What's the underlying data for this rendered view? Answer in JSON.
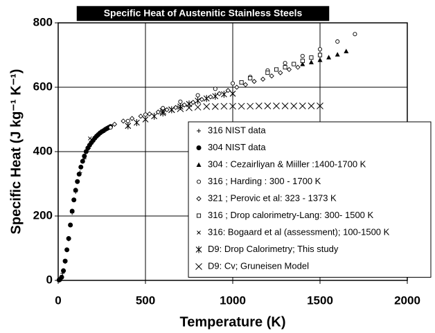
{
  "chart_data": {
    "type": "scatter",
    "title": "Specific Heat of Austenitic Stainless Steels",
    "xlabel": "Temperature (K)",
    "ylabel": "Specific Heat (J kg⁻¹ K⁻¹)",
    "xlim": [
      0,
      2000
    ],
    "xticks": [
      0,
      500,
      1000,
      1500,
      2000
    ],
    "ylim": [
      0,
      800
    ],
    "yticks": [
      0,
      200,
      400,
      600,
      800
    ],
    "grid": true,
    "legend": "lower-right",
    "series": [
      {
        "name": "316  NIST data",
        "color": "#000000",
        "marker": "plus",
        "x": [
          10,
          25,
          40,
          60,
          80,
          100,
          125,
          150,
          175,
          200,
          225,
          250,
          275,
          300
        ],
        "values": [
          4,
          22,
          58,
          128,
          210,
          275,
          335,
          378,
          410,
          432,
          448,
          460,
          469,
          476
        ]
      },
      {
        "name": "304  NIST  data",
        "color": "#000000",
        "marker": "dot",
        "x": [
          5,
          10,
          20,
          30,
          40,
          50,
          60,
          70,
          80,
          90,
          100,
          110,
          120,
          130,
          140,
          150,
          160,
          170,
          180,
          190,
          200,
          210,
          220,
          230,
          240,
          250,
          260,
          270,
          280,
          290,
          300
        ],
        "values": [
          1,
          3,
          10,
          30,
          60,
          95,
          130,
          172,
          215,
          250,
          280,
          307,
          330,
          352,
          370,
          386,
          400,
          411,
          420,
          428,
          435,
          442,
          448,
          453,
          458,
          462,
          465,
          469,
          472,
          475,
          478
        ]
      },
      {
        "name": "304 : Cezairliyan & Miiller :1400-1700 K",
        "color": "#000000",
        "marker": "triangle",
        "x": [
          1400,
          1450,
          1500,
          1550,
          1600,
          1650
        ],
        "values": [
          672,
          678,
          685,
          693,
          702,
          712
        ]
      },
      {
        "name": "316 ; Harding : 300 - 1700 K",
        "color": "#000000",
        "marker": "circle",
        "x": [
          300,
          400,
          500,
          600,
          700,
          800,
          900,
          1000,
          1100,
          1200,
          1300,
          1400,
          1500,
          1600,
          1700
        ],
        "values": [
          475,
          495,
          515,
          535,
          555,
          575,
          595,
          612,
          632,
          652,
          675,
          697,
          718,
          742,
          765
        ]
      },
      {
        "name": "321 ; Perovic et al: 323 - 1373 K",
        "color": "#000000",
        "marker": "diamond",
        "x": [
          323,
          373,
          423,
          473,
          523,
          573,
          623,
          673,
          723,
          773,
          823,
          873,
          923,
          973,
          1023,
          1073,
          1123,
          1173,
          1223,
          1273,
          1323,
          1373
        ],
        "values": [
          485,
          495,
          503,
          510,
          517,
          523,
          530,
          537,
          545,
          553,
          562,
          570,
          580,
          590,
          600,
          608,
          618,
          625,
          635,
          645,
          655,
          662
        ]
      },
      {
        "name": "316 ; Drop calorimetry-Lang: 300- 1500 K",
        "color": "#000000",
        "marker": "square",
        "x": [
          1050,
          1100,
          1200,
          1250,
          1300,
          1350,
          1400,
          1450,
          1500
        ],
        "values": [
          615,
          628,
          645,
          655,
          662,
          672,
          682,
          692,
          700
        ]
      },
      {
        "name": "316: Bogaard et al (assessment); 100-1500 K",
        "color": "#000000",
        "marker": "x",
        "x": [
          182
        ],
        "values": [
          441
        ]
      },
      {
        "name": "D9: Drop Calorimetry; This study",
        "color": "#000000",
        "marker": "asterisk",
        "x": [
          400,
          450,
          500,
          550,
          600,
          650,
          700,
          750,
          800,
          850,
          900,
          950,
          1000
        ],
        "values": [
          480,
          490,
          500,
          510,
          520,
          530,
          540,
          548,
          558,
          565,
          572,
          578,
          580
        ]
      },
      {
        "name": "D9: Cv; Gruneisen Model",
        "color": "#000000",
        "marker": "bigx",
        "x": [
          600,
          650,
          700,
          750,
          800,
          850,
          900,
          950,
          1000,
          1050,
          1100,
          1150,
          1200,
          1250,
          1300,
          1350,
          1400,
          1450,
          1500
        ],
        "values": [
          525,
          530,
          533,
          536,
          538,
          540,
          540,
          541,
          541,
          541,
          541,
          542,
          542,
          542,
          542,
          542,
          542,
          542,
          542
        ]
      }
    ]
  }
}
